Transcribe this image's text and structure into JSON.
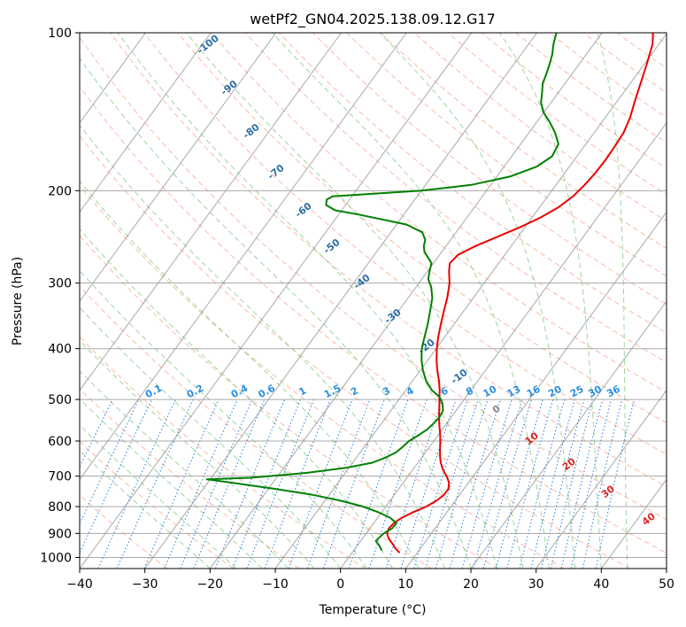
{
  "chart_data": {
    "type": "line",
    "title": "wetPf2_GN04.2025.138.09.12.G17",
    "xlabel": "Temperature (°C)",
    "ylabel": "Pressure (hPa)",
    "xlim": [
      -40,
      50
    ],
    "ylim": [
      1050,
      100
    ],
    "y_scale": "log",
    "skew": "skew-T",
    "grid": true,
    "x_ticks": [
      -40,
      -30,
      -20,
      -10,
      0,
      10,
      20,
      30,
      40,
      50
    ],
    "y_ticks": [
      100,
      200,
      300,
      400,
      500,
      600,
      700,
      800,
      900,
      1000
    ],
    "colors": {
      "temperature": "#ee0000",
      "dewpoint": "#008000",
      "dry_adiabats": "#f5a38a",
      "moist_adiabats": "#8ccf8c",
      "mixing_ratio": "#3388dd",
      "isotherms": "#999999",
      "dry_labels": "#2b6fa8",
      "mix_labels": "#2a8fe0",
      "moist_labels": "#d62728",
      "zero_label": "#888888"
    },
    "series": [
      {
        "key": "temperature",
        "points": [
          [
            7.3,
            980
          ],
          [
            6.1,
            960
          ],
          [
            5.1,
            940
          ],
          [
            4.0,
            920
          ],
          [
            3.2,
            900
          ],
          [
            2.9,
            880
          ],
          [
            3.1,
            860
          ],
          [
            3.7,
            840
          ],
          [
            4.8,
            820
          ],
          [
            6.2,
            800
          ],
          [
            7.1,
            780
          ],
          [
            7.6,
            760
          ],
          [
            7.6,
            740
          ],
          [
            7.0,
            720
          ],
          [
            5.9,
            700
          ],
          [
            4.6,
            680
          ],
          [
            3.5,
            660
          ],
          [
            2.6,
            640
          ],
          [
            1.8,
            620
          ],
          [
            1.0,
            600
          ],
          [
            0.1,
            580
          ],
          [
            -0.9,
            560
          ],
          [
            -1.9,
            540
          ],
          [
            -2.8,
            520
          ],
          [
            -3.8,
            500
          ],
          [
            -4.8,
            480
          ],
          [
            -6.0,
            460
          ],
          [
            -7.4,
            440
          ],
          [
            -8.7,
            420
          ],
          [
            -9.9,
            400
          ],
          [
            -11.0,
            380
          ],
          [
            -12.0,
            360
          ],
          [
            -13.0,
            340
          ],
          [
            -14.0,
            320
          ],
          [
            -15.3,
            300
          ],
          [
            -16.7,
            285
          ],
          [
            -17.5,
            275
          ],
          [
            -17.2,
            265
          ],
          [
            -15.5,
            255
          ],
          [
            -13.2,
            245
          ],
          [
            -10.8,
            235
          ],
          [
            -8.7,
            225
          ],
          [
            -7.1,
            215
          ],
          [
            -6.1,
            205
          ],
          [
            -5.6,
            195
          ],
          [
            -5.3,
            185
          ],
          [
            -5.2,
            175
          ],
          [
            -5.3,
            165
          ],
          [
            -5.5,
            155
          ],
          [
            -6.2,
            145
          ],
          [
            -7.3,
            135
          ],
          [
            -8.4,
            125
          ],
          [
            -9.6,
            115
          ],
          [
            -11.0,
            105
          ],
          [
            -12.2,
            100
          ]
        ]
      },
      {
        "key": "dewpoint",
        "points": [
          [
            4.3,
            970
          ],
          [
            3.4,
            950
          ],
          [
            2.3,
            930
          ],
          [
            2.7,
            900
          ],
          [
            3.4,
            880
          ],
          [
            3.5,
            860
          ],
          [
            1.9,
            840
          ],
          [
            -0.5,
            820
          ],
          [
            -3.5,
            800
          ],
          [
            -7.5,
            780
          ],
          [
            -12.5,
            760
          ],
          [
            -19.0,
            740
          ],
          [
            -26.5,
            720
          ],
          [
            -30.5,
            710
          ],
          [
            -24.0,
            705
          ],
          [
            -16.0,
            690
          ],
          [
            -10.5,
            675
          ],
          [
            -7.0,
            660
          ],
          [
            -5.5,
            645
          ],
          [
            -4.5,
            630
          ],
          [
            -4.1,
            615
          ],
          [
            -3.8,
            600
          ],
          [
            -3.0,
            585
          ],
          [
            -2.3,
            570
          ],
          [
            -2.0,
            555
          ],
          [
            -1.8,
            540
          ],
          [
            -2.0,
            525
          ],
          [
            -2.8,
            510
          ],
          [
            -4.0,
            495
          ],
          [
            -6.0,
            480
          ],
          [
            -8.0,
            460
          ],
          [
            -9.6,
            440
          ],
          [
            -11.0,
            420
          ],
          [
            -12.2,
            400
          ],
          [
            -13.1,
            380
          ],
          [
            -14.0,
            360
          ],
          [
            -15.1,
            340
          ],
          [
            -16.3,
            320
          ],
          [
            -17.7,
            305
          ],
          [
            -19.0,
            295
          ],
          [
            -19.7,
            285
          ],
          [
            -20.3,
            275
          ],
          [
            -21.5,
            268
          ],
          [
            -22.6,
            262
          ],
          [
            -23.4,
            255
          ],
          [
            -23.9,
            248
          ],
          [
            -25.2,
            240
          ],
          [
            -28.5,
            232
          ],
          [
            -37.0,
            222
          ],
          [
            -41.0,
            218
          ],
          [
            -43.0,
            213
          ],
          [
            -43.5,
            208
          ],
          [
            -43.0,
            205
          ],
          [
            -38.0,
            203
          ],
          [
            -30.0,
            200
          ],
          [
            -23.0,
            195
          ],
          [
            -18.0,
            188
          ],
          [
            -15.0,
            180
          ],
          [
            -13.8,
            172
          ],
          [
            -14.2,
            163
          ],
          [
            -16.0,
            155
          ],
          [
            -18.0,
            148
          ],
          [
            -20.0,
            142
          ],
          [
            -21.5,
            136
          ],
          [
            -22.5,
            130
          ],
          [
            -23.4,
            125
          ],
          [
            -23.9,
            120
          ],
          [
            -24.5,
            115
          ],
          [
            -25.2,
            110
          ],
          [
            -26.2,
            105
          ],
          [
            -27.0,
            100
          ]
        ]
      }
    ],
    "dry_adiabat_labels": [
      "-100",
      "-90",
      "-80",
      "-70",
      "-60",
      "-50",
      "-40",
      "-30",
      "-20",
      "-10"
    ],
    "mixing_ratio_labels": [
      "0.1",
      "0.2",
      "0.4",
      "0.6",
      "1",
      "1.5",
      "2",
      "3",
      "4",
      "6",
      "8",
      "10",
      "13",
      "16",
      "20",
      "25",
      "30",
      "36"
    ],
    "moist_adiabat_labels": [
      "0",
      "10",
      "20",
      "30",
      "40"
    ]
  }
}
